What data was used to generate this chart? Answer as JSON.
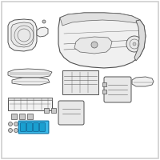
{
  "background_color": "#ffffff",
  "border_color": "#d0d0d0",
  "line_color": "#606060",
  "edge_color": "#505050",
  "highlight_fill": "#3ab8e8",
  "highlight_edge": "#1a80b0",
  "part_fill": "#f0f0f0",
  "part_fill2": "#e8e8e8",
  "small_fill": "#c8c8c8",
  "figsize": [
    2.0,
    2.0
  ],
  "dpi": 100
}
